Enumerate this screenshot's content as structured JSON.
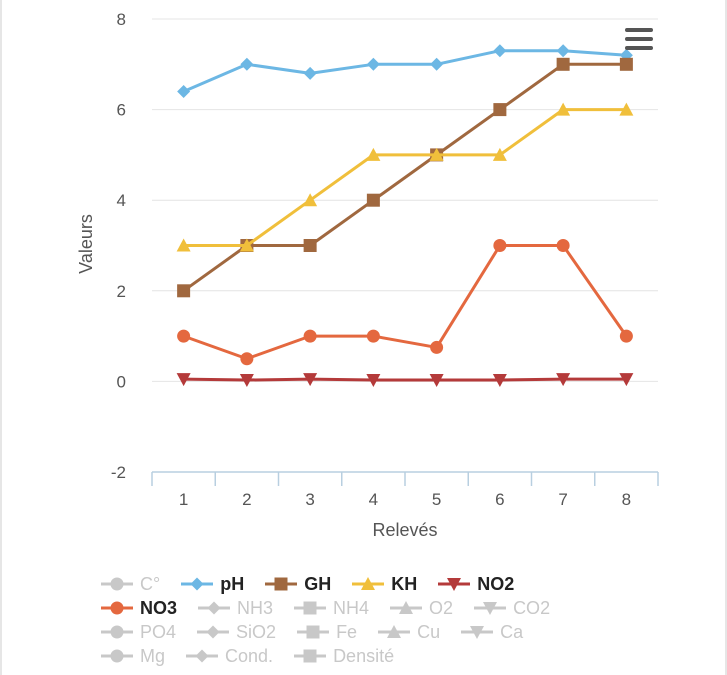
{
  "chart_data": {
    "type": "line",
    "xlabel": "Relevés",
    "ylabel": "Valeurs",
    "categories": [
      "1",
      "2",
      "3",
      "4",
      "5",
      "6",
      "7",
      "8"
    ],
    "ylim": [
      -2,
      8
    ],
    "yticks": [
      "-2",
      "0",
      "2",
      "4",
      "6",
      "8"
    ],
    "grid": true,
    "series": [
      {
        "name": "pH",
        "color": "#6cb7e4",
        "marker": "diamond",
        "values": [
          6.4,
          7.0,
          6.8,
          7.0,
          7.0,
          7.3,
          7.3,
          7.2
        ]
      },
      {
        "name": "GH",
        "color": "#a0683f",
        "marker": "square",
        "values": [
          2,
          3,
          3,
          4,
          5,
          6,
          7,
          7
        ]
      },
      {
        "name": "KH",
        "color": "#f0bf3b",
        "marker": "triangle",
        "values": [
          3,
          3,
          4,
          5,
          5,
          5,
          6,
          6
        ]
      },
      {
        "name": "NO3",
        "color": "#e4683f",
        "marker": "circle",
        "values": [
          1,
          0.5,
          1,
          1,
          0.75,
          3,
          3,
          1
        ]
      },
      {
        "name": "NO2",
        "color": "#b43a3a",
        "marker": "triangle-down",
        "values": [
          0.05,
          0.03,
          0.05,
          0.03,
          0.03,
          0.03,
          0.05,
          0.05
        ]
      }
    ]
  },
  "menu": {
    "icon": "hamburger-icon"
  },
  "legend": {
    "rows": [
      [
        {
          "label": "C°",
          "marker": "circle",
          "color": "#c8c8c8",
          "active": false
        },
        {
          "label": "pH",
          "marker": "diamond",
          "color": "#6cb7e4",
          "active": true
        },
        {
          "label": "GH",
          "marker": "square",
          "color": "#a0683f",
          "active": true
        },
        {
          "label": "KH",
          "marker": "triangle",
          "color": "#f0bf3b",
          "active": true
        },
        {
          "label": "NO2",
          "marker": "triangle-down",
          "color": "#b43a3a",
          "active": true
        }
      ],
      [
        {
          "label": "NO3",
          "marker": "circle",
          "color": "#e4683f",
          "active": true
        },
        {
          "label": "NH3",
          "marker": "diamond",
          "color": "#c8c8c8",
          "active": false
        },
        {
          "label": "NH4",
          "marker": "square",
          "color": "#c8c8c8",
          "active": false
        },
        {
          "label": "O2",
          "marker": "triangle",
          "color": "#c8c8c8",
          "active": false
        },
        {
          "label": "CO2",
          "marker": "triangle-down",
          "color": "#c8c8c8",
          "active": false
        }
      ],
      [
        {
          "label": "PO4",
          "marker": "circle",
          "color": "#c8c8c8",
          "active": false
        },
        {
          "label": "SiO2",
          "marker": "diamond",
          "color": "#c8c8c8",
          "active": false
        },
        {
          "label": "Fe",
          "marker": "square",
          "color": "#c8c8c8",
          "active": false
        },
        {
          "label": "Cu",
          "marker": "triangle",
          "color": "#c8c8c8",
          "active": false
        },
        {
          "label": "Ca",
          "marker": "triangle-down",
          "color": "#c8c8c8",
          "active": false
        }
      ],
      [
        {
          "label": "Mg",
          "marker": "circle",
          "color": "#c8c8c8",
          "active": false
        },
        {
          "label": "Cond.",
          "marker": "diamond",
          "color": "#c8c8c8",
          "active": false
        },
        {
          "label": "Densité",
          "marker": "square",
          "color": "#c8c8c8",
          "active": false
        }
      ]
    ]
  }
}
